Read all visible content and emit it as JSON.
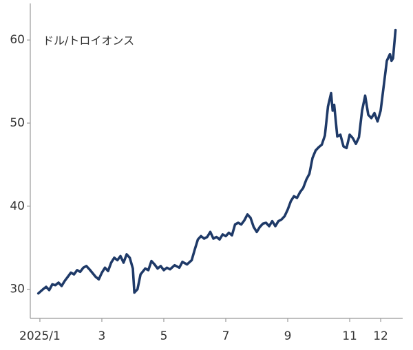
{
  "chart_data": {
    "type": "line",
    "y_label": "ドル/トロイオンス",
    "x": [
      0.95,
      1.1,
      1.2,
      1.3,
      1.4,
      1.5,
      1.6,
      1.7,
      1.8,
      1.9,
      2.0,
      2.1,
      2.2,
      2.3,
      2.4,
      2.5,
      2.6,
      2.8,
      2.9,
      3.0,
      3.1,
      3.2,
      3.3,
      3.4,
      3.5,
      3.6,
      3.7,
      3.8,
      3.9,
      4.0,
      4.05,
      4.15,
      4.25,
      4.4,
      4.5,
      4.6,
      4.7,
      4.8,
      4.9,
      5.0,
      5.1,
      5.2,
      5.35,
      5.5,
      5.6,
      5.75,
      5.9,
      6.0,
      6.1,
      6.2,
      6.3,
      6.4,
      6.5,
      6.6,
      6.7,
      6.8,
      6.9,
      7.0,
      7.1,
      7.2,
      7.3,
      7.4,
      7.5,
      7.6,
      7.7,
      7.8,
      7.9,
      8.0,
      8.1,
      8.2,
      8.3,
      8.4,
      8.5,
      8.6,
      8.7,
      8.8,
      8.9,
      9.0,
      9.1,
      9.2,
      9.3,
      9.4,
      9.5,
      9.6,
      9.7,
      9.8,
      9.9,
      10.0,
      10.1,
      10.2,
      10.3,
      10.4,
      10.45,
      10.5,
      10.6,
      10.7,
      10.8,
      10.9,
      11.0,
      11.1,
      11.2,
      11.3,
      11.4,
      11.5,
      11.6,
      11.7,
      11.8,
      11.9,
      12.0,
      12.1,
      12.2,
      12.3,
      12.35,
      12.4,
      12.48
    ],
    "series": [
      {
        "color": "#1f3a68",
        "values": [
          29.5,
          30.0,
          30.3,
          29.9,
          30.6,
          30.5,
          30.8,
          30.4,
          31.0,
          31.5,
          32.0,
          31.8,
          32.3,
          32.1,
          32.6,
          32.8,
          32.4,
          31.5,
          31.2,
          32.0,
          32.6,
          32.2,
          33.2,
          33.8,
          33.5,
          34.0,
          33.2,
          34.2,
          33.8,
          32.5,
          29.6,
          30.0,
          31.8,
          32.5,
          32.3,
          33.4,
          33.0,
          32.5,
          32.8,
          32.3,
          32.6,
          32.4,
          32.9,
          32.6,
          33.3,
          33.0,
          33.5,
          34.8,
          36.0,
          36.4,
          36.1,
          36.3,
          36.9,
          36.1,
          36.3,
          36.0,
          36.6,
          36.4,
          36.8,
          36.5,
          37.8,
          38.0,
          37.8,
          38.3,
          39.0,
          38.6,
          37.5,
          36.9,
          37.5,
          37.9,
          38.0,
          37.6,
          38.2,
          37.6,
          38.2,
          38.4,
          38.8,
          39.6,
          40.6,
          41.2,
          41.0,
          41.7,
          42.2,
          43.2,
          43.9,
          45.8,
          46.7,
          47.1,
          47.4,
          48.5,
          52.0,
          53.6,
          51.5,
          52.2,
          48.4,
          48.6,
          47.2,
          47.0,
          48.6,
          48.2,
          47.5,
          48.3,
          51.5,
          53.3,
          51.0,
          50.6,
          51.2,
          50.2,
          51.5,
          54.5,
          57.5,
          58.3,
          57.5,
          57.8,
          61.2
        ]
      }
    ],
    "xlim": [
      0.69,
      12.71
    ],
    "xticks": [
      {
        "value": 1,
        "label": "2025/1"
      },
      3,
      5,
      7,
      9,
      11,
      12
    ],
    "ylim": [
      26.5,
      64.4
    ],
    "yticks": [
      30,
      40,
      50,
      60
    ],
    "grid": false
  }
}
